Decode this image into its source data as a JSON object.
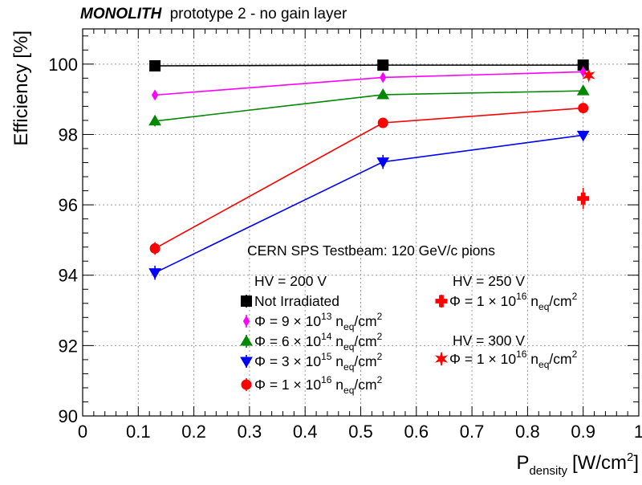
{
  "chart_data": {
    "type": "line",
    "title": {
      "bold": "MONOLITH",
      "rest": "prototype 2 - no gain layer"
    },
    "xlabel": {
      "main": "P",
      "sub": "density",
      "unit_pre": "[W/cm",
      "unit_sup": "2",
      "unit_post": "]"
    },
    "ylabel": "Efficiency [%]",
    "xlim": [
      0,
      1
    ],
    "ylim": [
      90,
      101
    ],
    "xticks": [
      0,
      0.1,
      0.2,
      0.3,
      0.4,
      0.5,
      0.6,
      0.7,
      0.8,
      0.9,
      1
    ],
    "xtick_labels": [
      "0",
      "0.1",
      "0.2",
      "0.3",
      "0.4",
      "0.5",
      "0.6",
      "0.7",
      "0.8",
      "0.9",
      "1"
    ],
    "yticks": [
      90,
      92,
      94,
      96,
      98,
      100
    ],
    "ytick_labels": [
      "90",
      "92",
      "94",
      "96",
      "98",
      "100"
    ],
    "grid": true,
    "annotation": "CERN SPS Testbeam: 120 GeV/c pions",
    "series": [
      {
        "name": "Not Irradiated",
        "hv": "HV = 200 V",
        "color": "#000000",
        "marker": "square",
        "line": true,
        "x": [
          0.13,
          0.54,
          0.9
        ],
        "y": [
          99.95,
          99.97,
          99.97
        ],
        "err": [
          0.04,
          0.04,
          0.04
        ]
      },
      {
        "name": "Φ = 9 ×10^13 n_eq/cm^2",
        "hv": "HV = 200 V",
        "color": "#ff00ff",
        "marker": "diamond",
        "line": true,
        "x": [
          0.13,
          0.54,
          0.9
        ],
        "y": [
          99.12,
          99.62,
          99.78
        ],
        "err": [
          0.1,
          0.08,
          0.06
        ]
      },
      {
        "name": "Φ = 6 ×10^14 n_eq/cm^2",
        "hv": "HV = 200 V",
        "color": "#008800",
        "marker": "triangle-up",
        "line": true,
        "x": [
          0.13,
          0.54,
          0.9
        ],
        "y": [
          98.38,
          99.13,
          99.24
        ],
        "err": [
          0.15,
          0.1,
          0.08
        ]
      },
      {
        "name": "Φ = 3 ×10^15 n_eq/cm^2",
        "hv": "HV = 200 V",
        "color": "#0000ff",
        "marker": "triangle-down",
        "line": true,
        "x": [
          0.13,
          0.54,
          0.9
        ],
        "y": [
          94.07,
          97.22,
          97.98
        ],
        "err": [
          0.2,
          0.2,
          0.12
        ]
      },
      {
        "name": "Φ = 1 ×10^16 n_eq/cm^2",
        "hv": "HV = 200 V",
        "color": "#ff0000",
        "marker": "circle",
        "line": true,
        "x": [
          0.13,
          0.54,
          0.9
        ],
        "y": [
          94.76,
          98.33,
          98.75
        ],
        "err": [
          0.18,
          0.12,
          0.1
        ]
      },
      {
        "name": "Φ = 1 ×10^16 n_eq/cm^2",
        "hv": "HV = 250 V",
        "color": "#ff0000",
        "marker": "cross",
        "line": false,
        "x": [
          0.9
        ],
        "y": [
          96.18
        ],
        "err": [
          0.3
        ]
      },
      {
        "name": "Φ = 1 ×10^16 n_eq/cm^2",
        "hv": "HV = 300 V",
        "color": "#ff0000",
        "marker": "star",
        "line": false,
        "x": [
          0.91
        ],
        "y": [
          99.68
        ],
        "err": [
          0.08
        ]
      }
    ],
    "legend": {
      "hv200": "HV = 200 V",
      "hv250": "HV = 250 V",
      "hv300": "HV = 300 V",
      "entries": [
        {
          "series": 0,
          "kind": "plain",
          "label": "Not Irradiated"
        },
        {
          "series": 1,
          "kind": "phi",
          "coef": "9",
          "times": "× 10",
          "exp": "13",
          "n": "n",
          "nsub": "eq",
          "per": "/cm",
          "persup": "2"
        },
        {
          "series": 2,
          "kind": "phi",
          "coef": "6",
          "times": "× 10",
          "exp": "14",
          "n": "n",
          "nsub": "eq",
          "per": "/cm",
          "persup": "2"
        },
        {
          "series": 3,
          "kind": "phi",
          "coef": "3",
          "times": "× 10",
          "exp": "15",
          "n": "n",
          "nsub": "eq",
          "per": "/cm",
          "persup": "2"
        },
        {
          "series": 4,
          "kind": "phi",
          "coef": "1",
          "times": "× 10",
          "exp": "16",
          "n": "n",
          "nsub": "eq",
          "per": "/cm",
          "persup": "2"
        },
        {
          "series": 5,
          "kind": "phi",
          "coef": "1",
          "times": "× 10",
          "exp": "16",
          "n": "n",
          "nsub": "eq",
          "per": "/cm",
          "persup": "2"
        },
        {
          "series": 6,
          "kind": "phi",
          "coef": "1",
          "times": "× 10",
          "exp": "16",
          "n": "n",
          "nsub": "eq",
          "per": "/cm",
          "persup": "2"
        }
      ],
      "phi_prefix": "Φ = "
    }
  }
}
